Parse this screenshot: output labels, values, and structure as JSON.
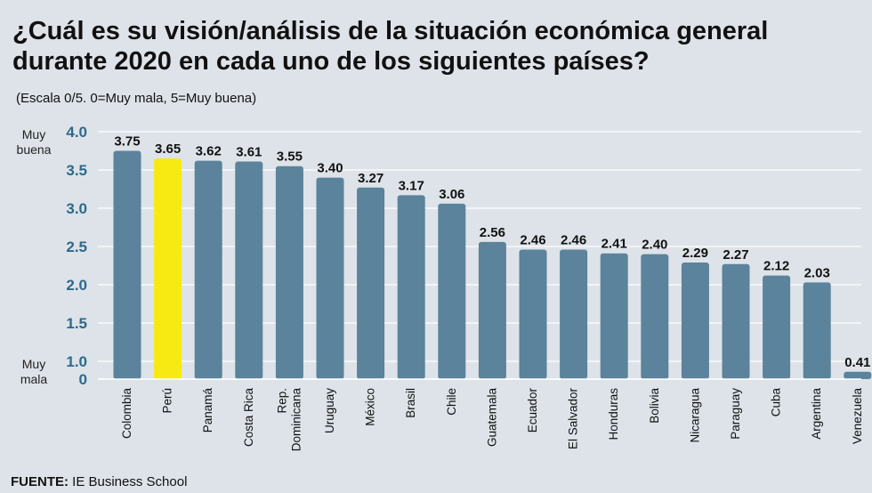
{
  "title": "¿Cuál es su visión/análisis de la situación económica general durante 2020 en cada uno de los siguientes países?",
  "subtitle": "(Escala 0/5. 0=Muy mala, 5=Muy buena)",
  "source_label": "FUENTE:",
  "source_text": " IE Business School",
  "chart_data": {
    "type": "bar",
    "title": "¿Cuál es su visión/análisis de la situación económica general durante 2020 en cada uno de los siguientes países?",
    "xlabel": "",
    "ylabel": "",
    "ylim": [
      0,
      4.0
    ],
    "yticks": [
      0,
      1.0,
      1.5,
      2.0,
      2.5,
      3.0,
      3.5,
      4.0
    ],
    "ytick_labels": [
      "0",
      "1.0",
      "1.5",
      "2.0",
      "2.5",
      "3.0",
      "3.5",
      "4.0"
    ],
    "y_top_label": [
      "Muy",
      "buena"
    ],
    "y_bottom_label": [
      "Muy",
      "mala"
    ],
    "categories": [
      [
        "Colombia"
      ],
      [
        "Perú"
      ],
      [
        "Panamá"
      ],
      [
        "Costa Rica"
      ],
      [
        "Rep.",
        "Dominicana"
      ],
      [
        "Uruguay"
      ],
      [
        "México"
      ],
      [
        "Brasil"
      ],
      [
        "Chile"
      ],
      [
        "Guatemala"
      ],
      [
        "Ecuador"
      ],
      [
        "El Salvador"
      ],
      [
        "Honduras"
      ],
      [
        "Bolivia"
      ],
      [
        "Nicaragua"
      ],
      [
        "Paraguay"
      ],
      [
        "Cuba"
      ],
      [
        "Argentina"
      ],
      [
        "Venezuela"
      ]
    ],
    "values": [
      3.75,
      3.65,
      3.62,
      3.61,
      3.55,
      3.4,
      3.27,
      3.17,
      3.06,
      2.56,
      2.46,
      2.46,
      2.41,
      2.4,
      2.29,
      2.27,
      2.12,
      2.03,
      0.41
    ],
    "value_labels": [
      "3.75",
      "3.65",
      "3.62",
      "3.61",
      "3.55",
      "3.40",
      "3.27",
      "3.17",
      "3.06",
      "2.56",
      "2.46",
      "2.46",
      "2.41",
      "2.40",
      "2.29",
      "2.27",
      "2.12",
      "2.03",
      "0.41"
    ],
    "highlight_index": 1,
    "colors": {
      "bar": "#5b839b",
      "highlight": "#f7ea13",
      "tick": "#2b6a8c",
      "grid": "#ffffff"
    },
    "grid": true
  }
}
